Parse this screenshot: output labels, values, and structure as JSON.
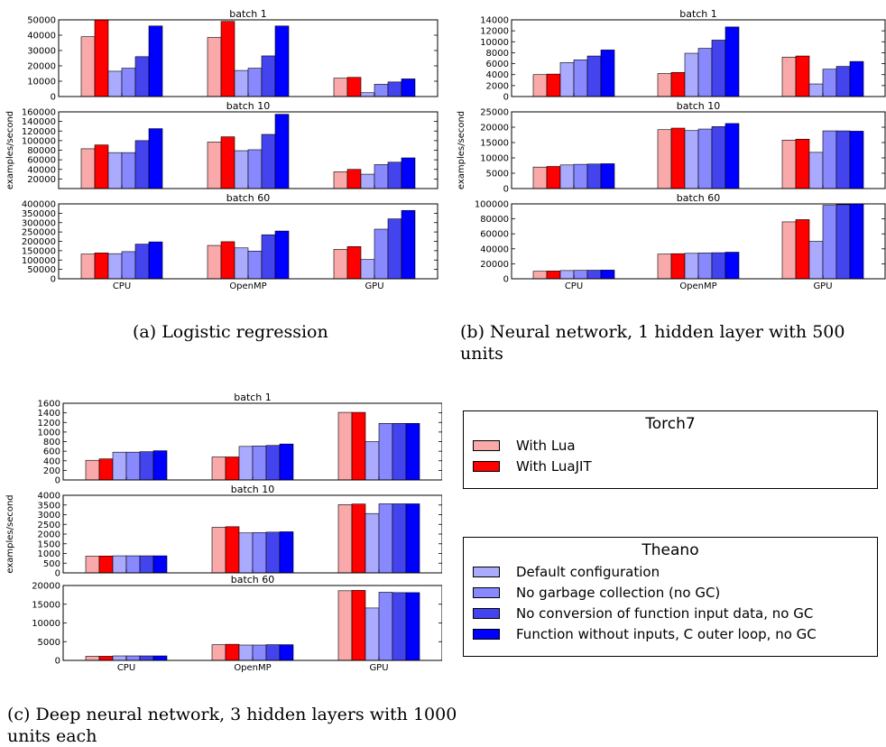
{
  "captions": {
    "a": "(a) Logistic regression",
    "b": "(b) Neural network, 1 hidden layer with 500 units",
    "c": "(c) Deep neural network, 3 hidden layers with 1000 units each"
  },
  "colors": [
    "#f9a9a9",
    "#ff0000",
    "#aaaaff",
    "#8888ff",
    "#4444ee",
    "#0000ff"
  ],
  "legends": {
    "torch": {
      "title": "Torch7",
      "entries": [
        {
          "label": "With Lua",
          "color": "#f9a9a9"
        },
        {
          "label": "With LuaJIT",
          "color": "#ff0000"
        }
      ]
    },
    "theano": {
      "title": "Theano",
      "entries": [
        {
          "label": "Default configuration",
          "color": "#aaaaff"
        },
        {
          "label": "No garbage collection (no GC)",
          "color": "#8888ff"
        },
        {
          "label": "No conversion of function input data, no GC",
          "color": "#4444ee"
        },
        {
          "label": "Function without inputs, C outer loop, no GC",
          "color": "#0000ff"
        }
      ]
    }
  },
  "chart_data": [
    {
      "type": "bar",
      "ylabel": "examples/second",
      "categories": [
        "CPU",
        "OpenMP",
        "GPU"
      ],
      "series_names": [
        "With Lua",
        "With LuaJIT",
        "Default configuration",
        "No garbage collection (no GC)",
        "No conversion of function input data, no GC",
        "Function without inputs, C outer loop, no GC"
      ],
      "panels": [
        {
          "title": "batch 1",
          "ylim": [
            0,
            50000
          ],
          "yticks": [
            0,
            10000,
            20000,
            30000,
            40000,
            50000
          ],
          "values": [
            [
              39000,
              50000,
              16500,
              18500,
              26000,
              46000
            ],
            [
              38500,
              49000,
              17000,
              18500,
              26500,
              46000
            ],
            [
              12000,
              12500,
              2500,
              8000,
              9500,
              11500
            ]
          ]
        },
        {
          "title": "batch 10",
          "ylim": [
            0,
            160000
          ],
          "yticks": [
            20000,
            40000,
            60000,
            80000,
            100000,
            120000,
            140000,
            160000
          ],
          "values": [
            [
              83000,
              91000,
              75000,
              75000,
              100000,
              125000
            ],
            [
              97000,
              108000,
              79000,
              81000,
              113000,
              155000
            ],
            [
              35000,
              40000,
              30000,
              50000,
              55000,
              64000
            ]
          ]
        },
        {
          "title": "batch 60",
          "ylim": [
            0,
            400000
          ],
          "yticks": [
            0,
            50000,
            100000,
            150000,
            200000,
            250000,
            300000,
            350000,
            400000
          ],
          "values": [
            [
              132000,
              138000,
              134000,
              145000,
              185000,
              197000
            ],
            [
              178000,
              198000,
              165000,
              148000,
              235000,
              255000
            ],
            [
              157000,
              172000,
              103000,
              265000,
              320000,
              365000
            ]
          ]
        }
      ]
    },
    {
      "type": "bar",
      "ylabel": "examples/second",
      "categories": [
        "CPU",
        "OpenMP",
        "GPU"
      ],
      "series_names": [
        "With Lua",
        "With LuaJIT",
        "Default configuration",
        "No garbage collection (no GC)",
        "No conversion of function input data, no GC",
        "Function without inputs, C outer loop, no GC"
      ],
      "panels": [
        {
          "title": "batch 1",
          "ylim": [
            0,
            14000
          ],
          "yticks": [
            0,
            2000,
            4000,
            6000,
            8000,
            10000,
            12000,
            14000
          ],
          "values": [
            [
              4000,
              4100,
              6200,
              6700,
              7400,
              8500
            ],
            [
              4200,
              4400,
              7900,
              8800,
              10300,
              12700
            ],
            [
              7200,
              7400,
              2300,
              5000,
              5500,
              6400
            ]
          ]
        },
        {
          "title": "batch 10",
          "ylim": [
            0,
            25000
          ],
          "yticks": [
            0,
            5000,
            10000,
            15000,
            20000,
            25000
          ],
          "values": [
            [
              7000,
              7200,
              7700,
              7900,
              8000,
              8100
            ],
            [
              19200,
              19700,
              18900,
              19400,
              20200,
              21200
            ],
            [
              15800,
              16100,
              11800,
              18800,
              18800,
              18700
            ]
          ]
        },
        {
          "title": "batch 60",
          "ylim": [
            0,
            100000
          ],
          "yticks": [
            0,
            20000,
            40000,
            60000,
            80000,
            100000
          ],
          "values": [
            [
              10000,
              10400,
              11000,
              11200,
              11400,
              11600
            ],
            [
              33000,
              33500,
              34000,
              34500,
              34800,
              35500
            ],
            [
              76000,
              79000,
              50000,
              98000,
              99000,
              100000
            ]
          ]
        }
      ]
    },
    {
      "type": "bar",
      "ylabel": "examples/second",
      "categories": [
        "CPU",
        "OpenMP",
        "GPU"
      ],
      "series_names": [
        "With Lua",
        "With LuaJIT",
        "Default configuration",
        "No garbage collection (no GC)",
        "No conversion of function input data, no GC",
        "Function without inputs, C outer loop, no GC"
      ],
      "panels": [
        {
          "title": "batch 1",
          "ylim": [
            0,
            1600
          ],
          "yticks": [
            0,
            200,
            400,
            600,
            800,
            1000,
            1200,
            1400,
            1600
          ],
          "values": [
            [
              410,
              440,
              580,
              580,
              590,
              610
            ],
            [
              480,
              480,
              700,
              710,
              720,
              750
            ],
            [
              1410,
              1410,
              800,
              1180,
              1180,
              1180
            ]
          ]
        },
        {
          "title": "batch 10",
          "ylim": [
            0,
            4000
          ],
          "yticks": [
            0,
            500,
            1000,
            1500,
            2000,
            2500,
            3000,
            3500,
            4000
          ],
          "values": [
            [
              860,
              870,
              880,
              880,
              880,
              880
            ],
            [
              2350,
              2380,
              2060,
              2080,
              2100,
              2120
            ],
            [
              3520,
              3550,
              3060,
              3560,
              3560,
              3560
            ]
          ]
        },
        {
          "title": "batch 60",
          "ylim": [
            0,
            20000
          ],
          "yticks": [
            0,
            5000,
            10000,
            15000,
            20000
          ],
          "values": [
            [
              1100,
              1100,
              1200,
              1200,
              1200,
              1200
            ],
            [
              4200,
              4300,
              4100,
              4100,
              4200,
              4200
            ],
            [
              18600,
              18700,
              14000,
              18200,
              18100,
              18100
            ]
          ]
        }
      ]
    }
  ]
}
